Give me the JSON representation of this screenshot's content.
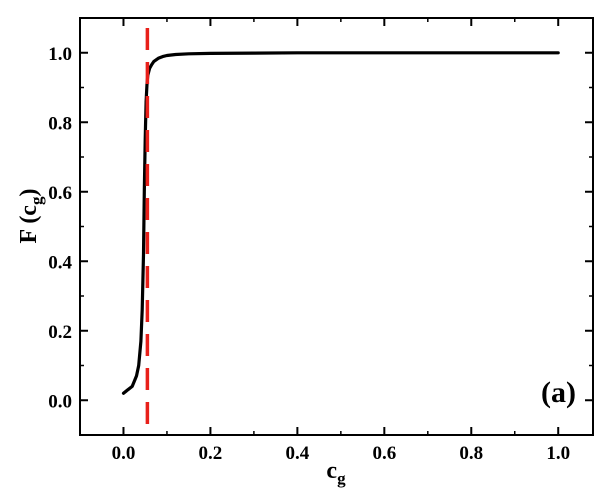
{
  "chart_data": {
    "type": "line",
    "xlabel": {
      "base": "c",
      "sub": "g"
    },
    "ylabel": {
      "prefix": "F (",
      "base": "c",
      "sub": "g",
      "suffix": ")"
    },
    "panel_label": "(a)",
    "xlim": [
      -0.1,
      1.08
    ],
    "ylim": [
      -0.1,
      1.1
    ],
    "x_ticks": [
      0.0,
      0.2,
      0.4,
      0.6,
      0.8,
      1.0
    ],
    "x_tick_labels": [
      "0.0",
      "0.2",
      "0.4",
      "0.6",
      "0.8",
      "1.0"
    ],
    "y_ticks": [
      0.0,
      0.2,
      0.4,
      0.6,
      0.8,
      1.0
    ],
    "y_tick_labels": [
      "0.0",
      "0.2",
      "0.4",
      "0.6",
      "0.8",
      "1.0"
    ],
    "grid": false,
    "series": [
      {
        "color": "#000000",
        "style": "solid",
        "x": [
          0.0,
          0.01,
          0.02,
          0.03,
          0.035,
          0.04,
          0.043,
          0.046,
          0.048,
          0.05,
          0.052,
          0.054,
          0.056,
          0.06,
          0.065,
          0.07,
          0.08,
          0.09,
          0.1,
          0.12,
          0.15,
          0.2,
          0.3,
          0.4,
          0.6,
          0.8,
          1.0
        ],
        "y": [
          0.02,
          0.03,
          0.04,
          0.07,
          0.1,
          0.17,
          0.26,
          0.42,
          0.6,
          0.75,
          0.86,
          0.91,
          0.935,
          0.955,
          0.966,
          0.975,
          0.984,
          0.989,
          0.992,
          0.995,
          0.997,
          0.998,
          0.999,
          1.0,
          1.0,
          1.0,
          1.0
        ]
      }
    ],
    "vlines": [
      {
        "x": 0.055,
        "color": "#e8201a",
        "style": "dashed"
      }
    ]
  }
}
